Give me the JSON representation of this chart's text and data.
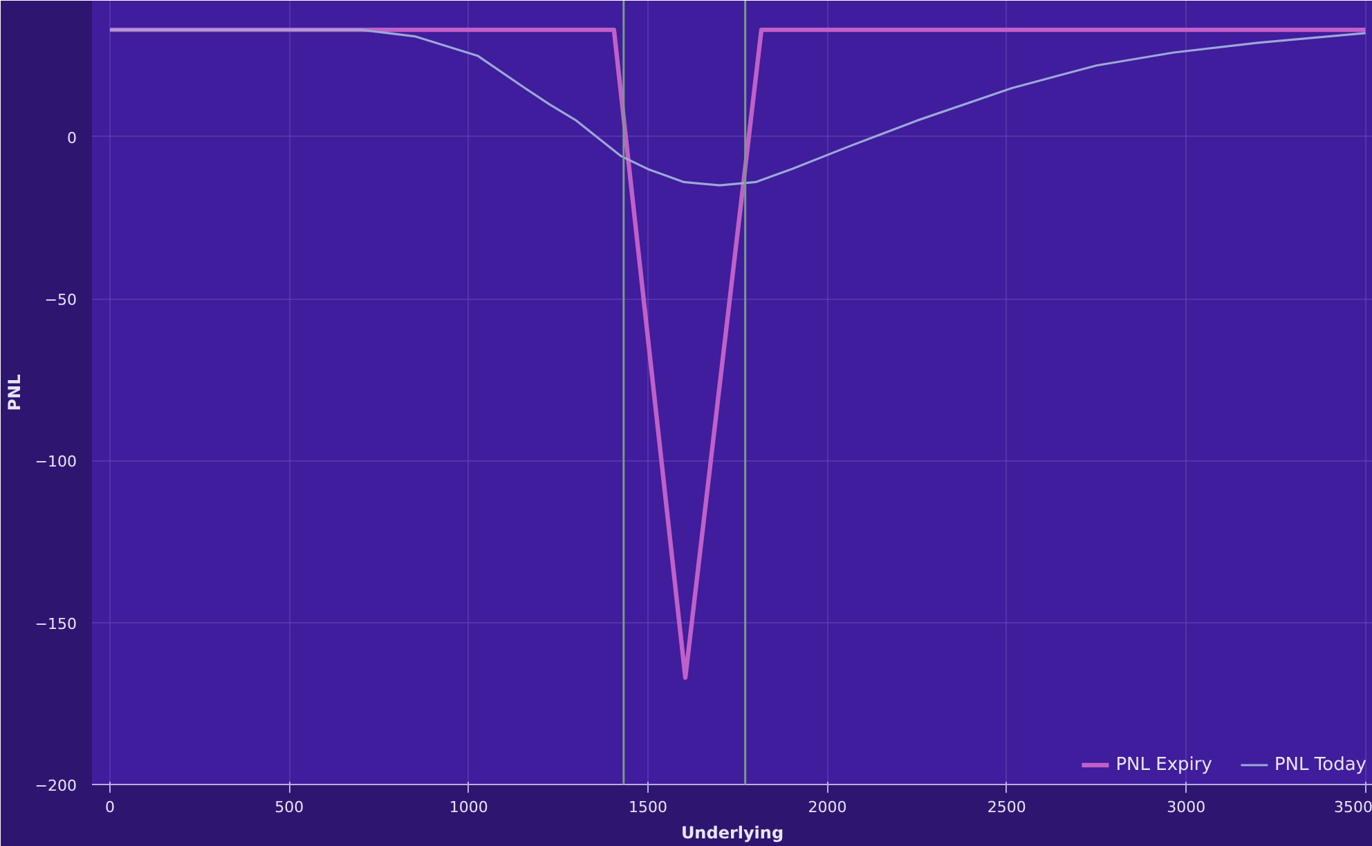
{
  "chart_data": {
    "type": "line",
    "xlabel": "Underlying",
    "ylabel": "PNL",
    "xlim": [
      -50,
      3520
    ],
    "ylim": [
      -200,
      42
    ],
    "xticks": [
      0,
      500,
      1000,
      1500,
      2000,
      2500,
      3000,
      3500
    ],
    "yticks": [
      -200,
      -150,
      -100,
      -50,
      0
    ],
    "grid": true,
    "legend": "bottom",
    "marker": "none",
    "line_style": "solid",
    "series": [
      {
        "name": "PNL Expiry",
        "color": "#c060c8",
        "x": [
          0,
          1405,
          1604,
          1816,
          3500
        ],
        "values": [
          33,
          33,
          -167,
          33,
          33
        ]
      },
      {
        "name": "PNL Today",
        "color": "#9aa8d8",
        "x": [
          0,
          700,
          850,
          1025,
          1157,
          1225,
          1300,
          1425,
          1500,
          1600,
          1700,
          1800,
          1900,
          2060,
          2250,
          2514,
          2750,
          2965,
          3200,
          3500
        ],
        "values": [
          33,
          33,
          31,
          25,
          15,
          10,
          5,
          -6,
          -10,
          -14,
          -15,
          -14,
          -10,
          -3,
          5,
          15,
          22,
          26,
          29,
          32
        ]
      }
    ],
    "ref_lines": [
      {
        "axis": "x",
        "value": 1432,
        "color": "#7a9a8a"
      },
      {
        "axis": "x",
        "value": 1771,
        "color": "#7a9a8a"
      }
    ]
  }
}
